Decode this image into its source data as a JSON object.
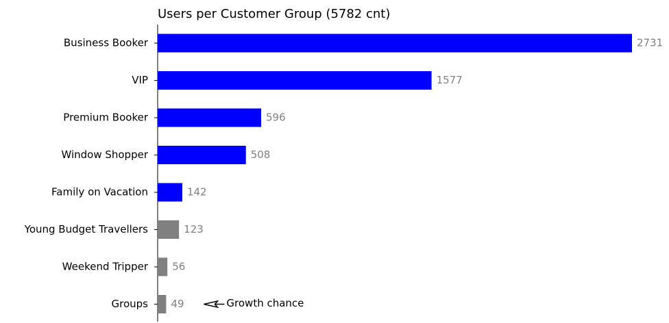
{
  "chart_data": {
    "type": "bar",
    "orientation": "horizontal",
    "title": "Users per Customer Group (5782 cnt)",
    "xlabel": "",
    "ylabel": "",
    "grid": false,
    "categories": [
      "Business Booker",
      "VIP",
      "Premium Booker",
      "Window Shopper",
      "Family on Vacation",
      "Young Budget Travellers",
      "Weekend Tripper",
      "Groups"
    ],
    "values": [
      2731,
      1577,
      596,
      508,
      142,
      123,
      56,
      49
    ],
    "value_labels": [
      "2731",
      "1577",
      "596",
      "508",
      "142",
      "123",
      "56",
      "49"
    ],
    "bar_colors": [
      "#0000ff",
      "#0000ff",
      "#0000ff",
      "#0000ff",
      "#0000ff",
      "#808080",
      "#808080",
      "#808080"
    ],
    "xlim": [
      0,
      2731
    ],
    "annotations": [
      {
        "text": "Growth chance",
        "target_category": "Groups",
        "arrow": "left-pointing-arrow-icon"
      }
    ]
  }
}
